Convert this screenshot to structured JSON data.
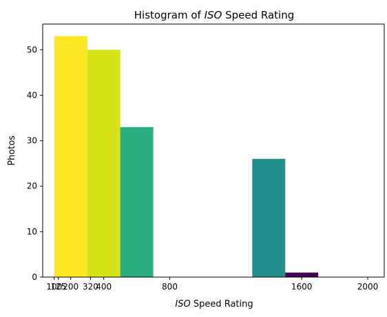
{
  "chart_data": {
    "type": "bar",
    "title_prefix": "Histogram of ",
    "title_italic": "ISO",
    "title_suffix": " Speed Rating",
    "xlabel_italic": "ISO",
    "xlabel_suffix": " Speed Rating",
    "ylabel": "Photos",
    "xlim": [
      30,
      2100
    ],
    "ylim": [
      0,
      55.65
    ],
    "x_ticks": [
      100,
      125,
      200,
      320,
      400,
      800,
      1600,
      2000
    ],
    "x_tick_labels": [
      "100",
      "125",
      "200",
      "320",
      "400",
      "800",
      "1600",
      "2000"
    ],
    "y_ticks": [
      0,
      10,
      20,
      30,
      40,
      50
    ],
    "y_tick_labels": [
      "0",
      "10",
      "20",
      "30",
      "40",
      "50"
    ],
    "bins": [
      {
        "x0": 100,
        "x1": 300,
        "value": 53,
        "color": "#fde725"
      },
      {
        "x0": 300,
        "x1": 500,
        "value": 50,
        "color": "#d8e219"
      },
      {
        "x0": 500,
        "x1": 700,
        "value": 33,
        "color": "#29af7f"
      },
      {
        "x0": 1300,
        "x1": 1500,
        "value": 26,
        "color": "#21908d"
      },
      {
        "x0": 1500,
        "x1": 1700,
        "value": 1,
        "color": "#440154"
      }
    ],
    "grid": false
  }
}
